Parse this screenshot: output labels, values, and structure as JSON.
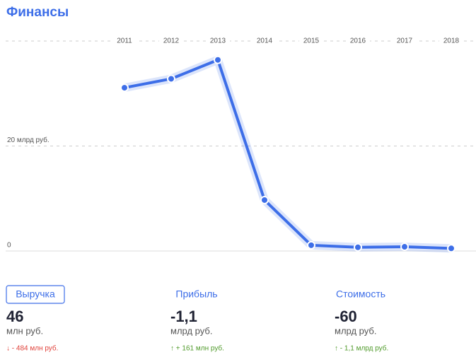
{
  "title": "Финансы",
  "chart_data": {
    "type": "line",
    "categories": [
      "2011",
      "2012",
      "2013",
      "2014",
      "2015",
      "2016",
      "2017",
      "2018"
    ],
    "series": [
      {
        "name": "Выручка",
        "color": "#3d6ee8",
        "values": [
          31.1,
          32.8,
          36.4,
          9.7,
          1.1,
          0.7,
          0.8,
          0.5
        ]
      }
    ],
    "ylim": [
      0,
      40
    ],
    "yticks": [
      0,
      {
        "value": 20,
        "label": "20 млрд руб."
      }
    ],
    "grid": true
  },
  "metrics": [
    {
      "label": "Выручка",
      "value": "46",
      "unit": "млн руб.",
      "change": "↓ - 484 млн руб.",
      "trend": "down"
    },
    {
      "label": "Прибыль",
      "value": "-1,1",
      "unit": "млрд руб.",
      "change": "↑ + 161 млн руб.",
      "trend": "up"
    },
    {
      "label": "Стоимость",
      "value": "-60",
      "unit": "млрд руб.",
      "change": "↑ - 1,1 млрд руб.",
      "trend": "up"
    }
  ]
}
